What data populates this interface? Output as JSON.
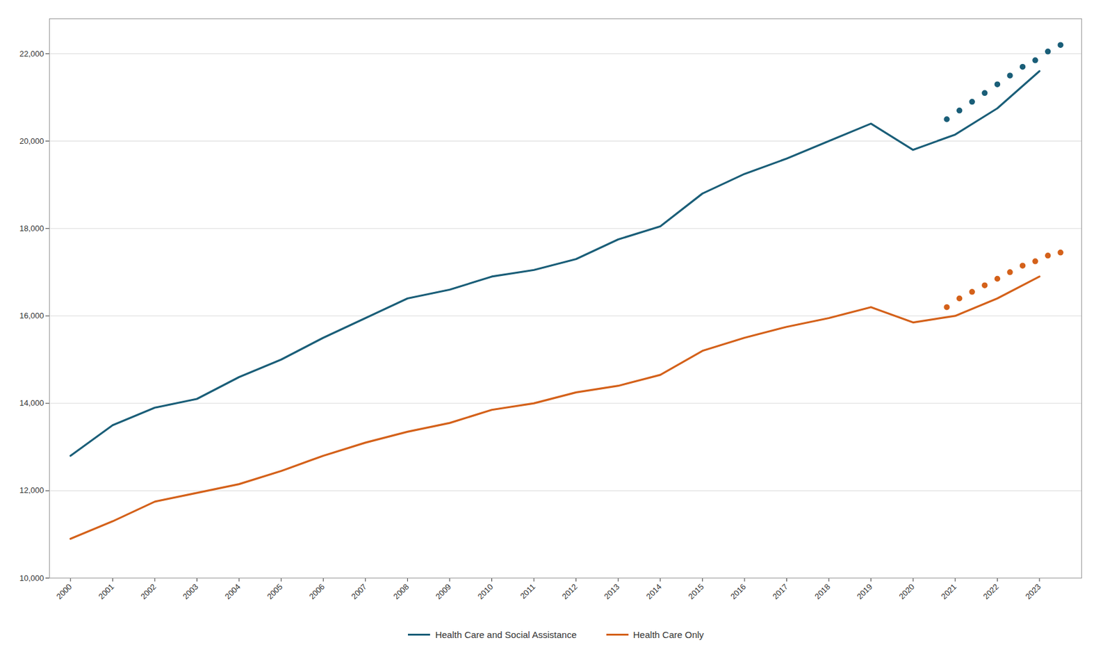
{
  "chart_data": {
    "type": "line",
    "x": [
      2000,
      2001,
      2002,
      2003,
      2004,
      2005,
      2006,
      2007,
      2008,
      2009,
      2010,
      2011,
      2012,
      2013,
      2014,
      2015,
      2016,
      2017,
      2018,
      2019,
      2020,
      2021,
      2022,
      2023
    ],
    "series": [
      {
        "name": "Health Care and Social Assistance",
        "color": "#1a5e78",
        "values": [
          12800,
          13500,
          13900,
          14100,
          14600,
          15000,
          15500,
          15950,
          16400,
          16600,
          16900,
          17050,
          17300,
          17750,
          18050,
          18800,
          19250,
          19600,
          20000,
          20400,
          19800,
          20150,
          20750,
          21600
        ]
      },
      {
        "name": "Health Care Only",
        "color": "#d4611a",
        "values": [
          10900,
          11300,
          11750,
          11950,
          12150,
          12450,
          12800,
          13100,
          13350,
          13550,
          13850,
          14000,
          14250,
          14400,
          14650,
          15200,
          15500,
          15750,
          15950,
          16200,
          15850,
          16000,
          16400,
          16900
        ]
      },
      {
        "type": "scatter",
        "marker": "circle",
        "color": "#1a5e78",
        "x": [
          2020.8,
          2021.1,
          2021.4,
          2021.7,
          2022.0,
          2022.3,
          2022.6,
          2022.9,
          2023.2,
          2023.5
        ],
        "values": [
          20500,
          20700,
          20900,
          21100,
          21300,
          21500,
          21700,
          21850,
          22050,
          22200
        ]
      },
      {
        "type": "scatter",
        "marker": "circle",
        "color": "#d4611a",
        "x": [
          2020.8,
          2021.1,
          2021.4,
          2021.7,
          2022.0,
          2022.3,
          2022.6,
          2022.9,
          2023.2,
          2023.5
        ],
        "values": [
          16200,
          16400,
          16550,
          16700,
          16850,
          17000,
          17150,
          17250,
          17380,
          17450
        ]
      }
    ],
    "xlim": [
      1999.5,
      2024.0
    ],
    "xticks": [
      2000,
      2001,
      2002,
      2003,
      2004,
      2005,
      2006,
      2007,
      2008,
      2009,
      2010,
      2011,
      2012,
      2013,
      2014,
      2015,
      2016,
      2017,
      2018,
      2019,
      2020,
      2021,
      2022,
      2023
    ],
    "ylim": [
      10000,
      22800
    ],
    "yticks": [
      {
        "value": 10000,
        "label": "10,000"
      },
      {
        "value": 12000,
        "label": "12,000"
      },
      {
        "value": 14000,
        "label": "14,000"
      },
      {
        "value": 16000,
        "label": "16,000"
      },
      {
        "value": 18000,
        "label": "18,000"
      },
      {
        "value": 20000,
        "label": "20,000"
      },
      {
        "value": 22000,
        "label": "22,000"
      }
    ],
    "grid": "y",
    "legend": "bottom"
  }
}
